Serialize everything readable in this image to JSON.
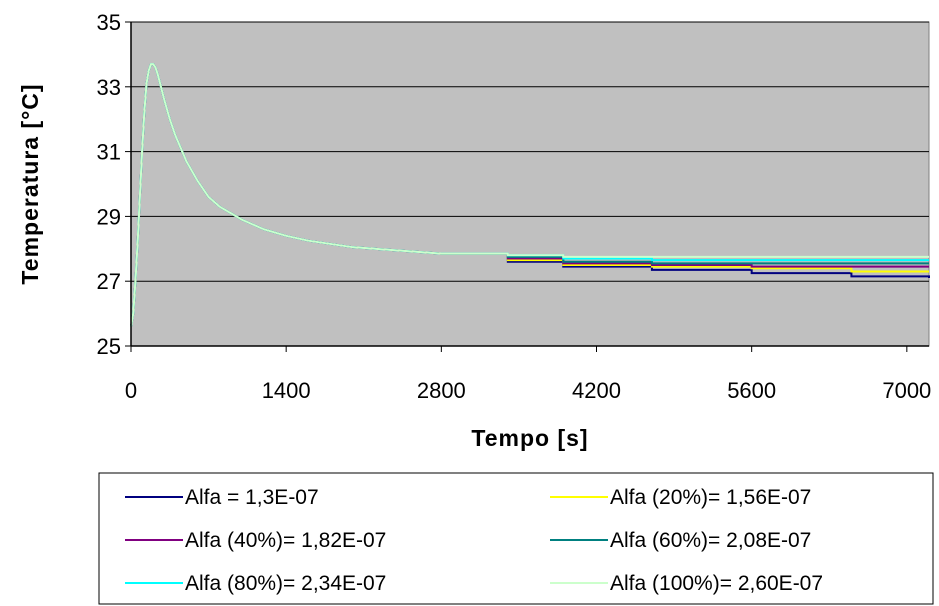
{
  "chart_data": {
    "type": "line",
    "title": "",
    "xlabel": "Tempo [s]",
    "ylabel": "Temperatura [°C]",
    "xlim": [
      0,
      7200
    ],
    "ylim": [
      25,
      35
    ],
    "xticks": [
      "0",
      "1400",
      "2800",
      "4200",
      "5600",
      "7000"
    ],
    "yticks": [
      "35",
      "33",
      "31",
      "29",
      "27",
      "25"
    ],
    "grid": "horizontal",
    "plot_background": "#c0c0c0",
    "legend_position": "bottom",
    "base_curve": {
      "x": [
        0,
        20,
        40,
        60,
        80,
        100,
        120,
        140,
        160,
        180,
        200,
        220,
        240,
        270,
        300,
        350,
        400,
        500,
        600,
        700,
        800,
        900,
        1000,
        1200,
        1400,
        1600,
        1800,
        2000,
        2200,
        2400,
        2600,
        2800
      ],
      "y": [
        25.6,
        26.0,
        27.0,
        28.2,
        29.6,
        31.0,
        32.2,
        33.1,
        33.5,
        33.7,
        33.7,
        33.6,
        33.4,
        33.0,
        32.6,
        32.0,
        31.5,
        30.7,
        30.1,
        29.6,
        29.3,
        29.1,
        28.9,
        28.6,
        28.4,
        28.25,
        28.15,
        28.05,
        28.0,
        27.95,
        27.9,
        27.85
      ]
    },
    "series": [
      {
        "name": "Alfa = 1,3E-07",
        "color": "#00007f",
        "x": [
          2800,
          3400,
          3900,
          4700,
          5600,
          6500,
          7200
        ],
        "y": [
          27.85,
          27.6,
          27.45,
          27.35,
          27.25,
          27.15,
          27.1
        ]
      },
      {
        "name": "Alfa (20%)= 1,56E-07",
        "color": "#ffff00",
        "x": [
          2800,
          3400,
          3900,
          4700,
          5600,
          6500,
          7200
        ],
        "y": [
          27.85,
          27.65,
          27.5,
          27.45,
          27.4,
          27.3,
          27.3
        ]
      },
      {
        "name": "Alfa (40%)= 1,82E-07",
        "color": "#800080",
        "x": [
          2800,
          3400,
          3900,
          4700,
          5600,
          6500,
          7200
        ],
        "y": [
          27.85,
          27.7,
          27.55,
          27.5,
          27.45,
          27.45,
          27.45
        ]
      },
      {
        "name": "Alfa (60%)= 2,08E-07",
        "color": "#008080",
        "x": [
          2800,
          3400,
          3900,
          4700,
          5600,
          6500,
          7200
        ],
        "y": [
          27.9,
          27.75,
          27.6,
          27.55,
          27.55,
          27.55,
          27.55
        ]
      },
      {
        "name": "Alfa (80%)= 2,34E-07",
        "color": "#00ffff",
        "x": [
          2800,
          3400,
          3900,
          4700,
          5600,
          6500,
          7200
        ],
        "y": [
          27.9,
          27.8,
          27.7,
          27.65,
          27.65,
          27.65,
          27.65
        ]
      },
      {
        "name": "Alfa (100%)= 2,60E-07",
        "color": "#ccffcc",
        "x": [
          2800,
          3400,
          3900,
          4700,
          5600,
          6500,
          7200
        ],
        "y": [
          27.9,
          27.8,
          27.75,
          27.75,
          27.75,
          27.75,
          27.75
        ]
      }
    ]
  }
}
